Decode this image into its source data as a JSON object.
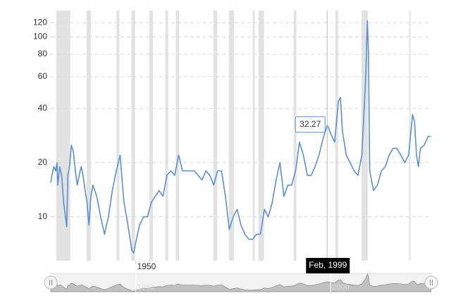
{
  "chart_data": {
    "type": "line",
    "log_scale": true,
    "grid": true,
    "xlim": [
      1928.2,
      2025.8
    ],
    "ylim": [
      5.7,
      140
    ],
    "yticks": [
      10,
      20,
      40,
      60,
      80,
      100,
      120
    ],
    "xticks": [
      1950
    ],
    "recessions": [
      [
        1929.6,
        1933.2
      ],
      [
        1937.4,
        1938.5
      ],
      [
        1945.1,
        1945.8
      ],
      [
        1948.9,
        1949.8
      ],
      [
        1953.5,
        1954.4
      ],
      [
        1957.6,
        1958.3
      ],
      [
        1960.3,
        1961.1
      ],
      [
        1969.9,
        1970.9
      ],
      [
        1973.9,
        1975.2
      ],
      [
        1980.0,
        1980.5
      ],
      [
        1981.5,
        1982.9
      ],
      [
        1990.5,
        1991.2
      ],
      [
        2001.2,
        2001.9
      ],
      [
        2007.9,
        2009.5
      ],
      [
        2020.1,
        2020.3
      ]
    ],
    "series": [
      {
        "color": "#5b8fd1",
        "x": [
          1928.2,
          1928.5,
          1929,
          1929.5,
          1929.8,
          1930,
          1930.5,
          1931,
          1931.5,
          1932.3,
          1932.6,
          1933,
          1933.5,
          1934,
          1934.5,
          1935,
          1935.5,
          1936,
          1936.5,
          1937,
          1937.5,
          1938,
          1938.5,
          1939,
          1940,
          1941,
          1942,
          1942.5,
          1943,
          1944,
          1945,
          1946,
          1946.5,
          1947,
          1948,
          1949,
          1949.5,
          1950,
          1951,
          1952,
          1953,
          1954,
          1955,
          1956,
          1957,
          1958,
          1959,
          1960,
          1961,
          1962,
          1963,
          1964,
          1965,
          1966,
          1967,
          1968,
          1969,
          1970,
          1971,
          1972,
          1973,
          1974,
          1975,
          1976,
          1977,
          1978,
          1979,
          1980,
          1981,
          1982,
          1983,
          1984,
          1985,
          1986,
          1987,
          1988,
          1989,
          1990,
          1991,
          1992,
          1993,
          1994,
          1995,
          1996,
          1997,
          1998,
          1999.1,
          1999.5,
          2000,
          2001,
          2002,
          2002.5,
          2003,
          2004,
          2005,
          2006,
          2007,
          2008,
          2009,
          2009.4,
          2009.7,
          2010,
          2011,
          2012,
          2013,
          2014,
          2015,
          2016,
          2017,
          2018,
          2019,
          2020,
          2021,
          2021.5,
          2022,
          2022.5,
          2023,
          2024,
          2025,
          2025.7
        ],
        "values": [
          15.5,
          17,
          19,
          18,
          20,
          15,
          19,
          17,
          12,
          8.8,
          17,
          19,
          25,
          23,
          18,
          15,
          17,
          19,
          17,
          14,
          12,
          9,
          13,
          15,
          13,
          10,
          8,
          9,
          10,
          14,
          18,
          22,
          16,
          12,
          9,
          6.5,
          6.3,
          7.2,
          9,
          10,
          10,
          12,
          13,
          14,
          13,
          17,
          18,
          17,
          22,
          18,
          18,
          18,
          18,
          17,
          16,
          18,
          17,
          15,
          18,
          18,
          13,
          8.5,
          10,
          11,
          9,
          8,
          7.5,
          7.5,
          8,
          8,
          11,
          10,
          12,
          16,
          20,
          13,
          15,
          15,
          18,
          26,
          22,
          17,
          17,
          19,
          22,
          27,
          32.27,
          31,
          29,
          26,
          44,
          46,
          30,
          22,
          20,
          18,
          17,
          22,
          60,
          123,
          80,
          18,
          14,
          15,
          18,
          19,
          22,
          24,
          24,
          22,
          20,
          22,
          37,
          34,
          22,
          19,
          24,
          25,
          28,
          28
        ]
      }
    ],
    "tooltip": {
      "x": 1999.1,
      "label": "Feb, 1999"
    },
    "navigator": {
      "xticks": [
        1950,
        2000
      ]
    }
  }
}
